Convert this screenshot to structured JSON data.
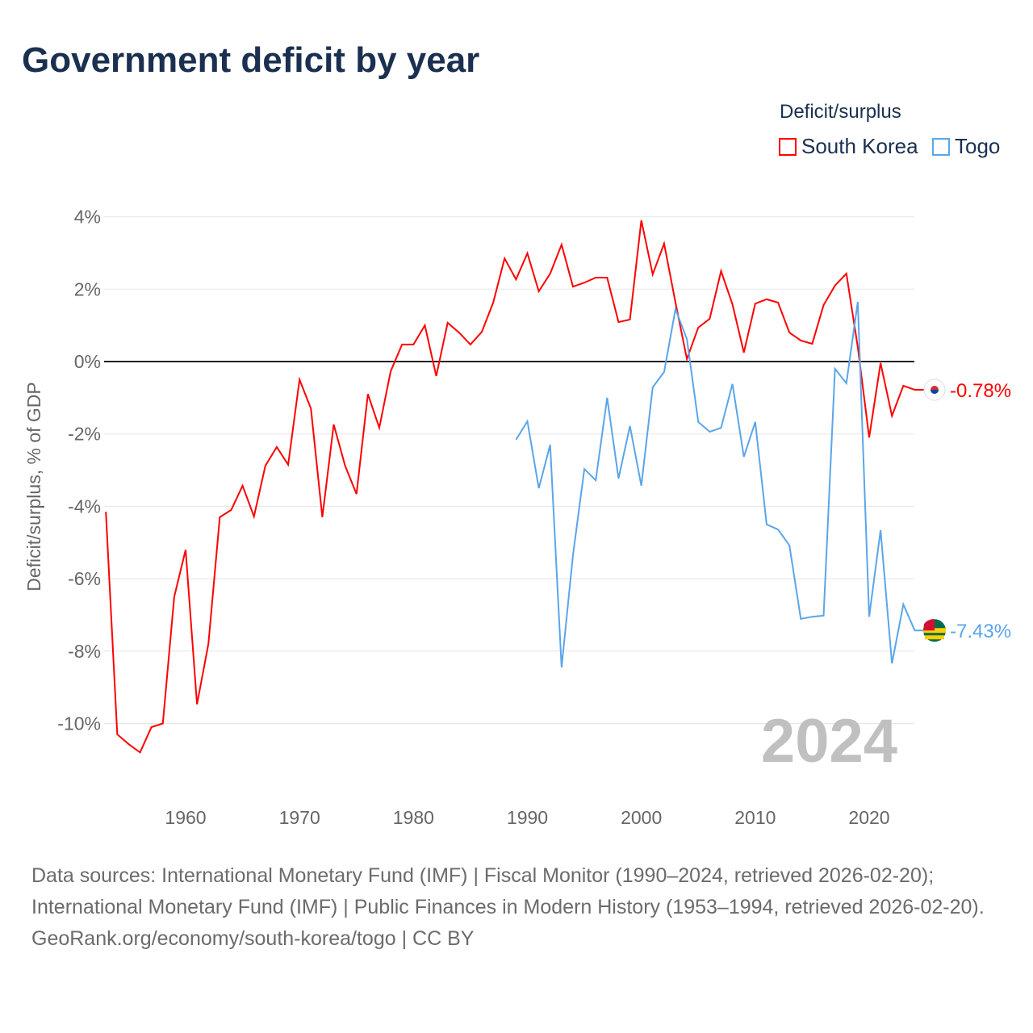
{
  "title": "Government deficit by year",
  "chart_data": {
    "type": "line",
    "title": "Government deficit by year",
    "xlabel": "",
    "ylabel": "Deficit/surplus, % of GDP",
    "legend_title": "Deficit/surplus",
    "legend_position": "top-right",
    "xlim": [
      1953,
      2024
    ],
    "ylim": [
      -12,
      4.5
    ],
    "yticks": [
      4,
      2,
      0,
      -2,
      -4,
      -6,
      -8,
      -10
    ],
    "ytick_labels": [
      "4%",
      "2%",
      "0%",
      "-2%",
      "-4%",
      "-6%",
      "-8%",
      "-10%"
    ],
    "xticks": [
      1960,
      1970,
      1980,
      1990,
      2000,
      2010,
      2020
    ],
    "xtick_labels": [
      "1960",
      "1970",
      "1980",
      "1990",
      "2000",
      "2010",
      "2020"
    ],
    "year_label": "2024",
    "series": [
      {
        "name": "South Korea",
        "color": "#ff0000",
        "start_year": 1953,
        "end_label": "-0.78%",
        "values": [
          -4.15,
          -10.3,
          -10.57,
          -10.8,
          -10.1,
          -10.0,
          -6.5,
          -5.2,
          -9.47,
          -7.8,
          -4.3,
          -4.1,
          -3.43,
          -4.28,
          -2.88,
          -2.36,
          -2.85,
          -0.5,
          -1.3,
          -4.3,
          -1.74,
          -2.88,
          -3.66,
          -0.9,
          -1.83,
          -0.27,
          0.47,
          0.47,
          1.0,
          -0.4,
          1.07,
          0.8,
          0.47,
          0.82,
          1.63,
          2.85,
          2.27,
          2.99,
          1.94,
          2.43,
          3.23,
          2.07,
          2.18,
          2.32,
          2.32,
          1.09,
          1.16,
          3.9,
          2.41,
          3.26,
          1.63,
          0.07,
          0.94,
          1.18,
          2.5,
          1.58,
          0.25,
          1.6,
          1.72,
          1.63,
          0.8,
          0.58,
          0.49,
          1.56,
          2.1,
          2.43,
          0.4,
          -2.1,
          -0.04,
          -1.5,
          -0.67,
          -0.78
        ]
      },
      {
        "name": "Togo",
        "color": "#5aa5ea",
        "start_year": 1989,
        "end_label": "-7.43%",
        "values": [
          -2.16,
          -1.65,
          -3.5,
          -2.3,
          -8.45,
          -5.35,
          -2.97,
          -3.28,
          -1.0,
          -3.23,
          -1.78,
          -3.43,
          -0.71,
          -0.29,
          1.45,
          0.62,
          -1.67,
          -1.94,
          -1.83,
          -0.62,
          -2.63,
          -1.67,
          -4.5,
          -4.64,
          -5.08,
          -7.11,
          -7.05,
          -7.02,
          -0.2,
          -0.6,
          1.65,
          -7.05,
          -4.66,
          -8.34,
          -6.71,
          -7.43
        ]
      }
    ]
  },
  "footer": {
    "sources": "Data sources: International Monetary Fund (IMF) | Fiscal Monitor (1990–2024, retrieved 2026-02-20); International Monetary Fund (IMF) | Public Finances in Modern History (1953–1994, retrieved 2026-02-20).",
    "credit": "GeoRank.org/economy/south-korea/togo | CC BY"
  }
}
